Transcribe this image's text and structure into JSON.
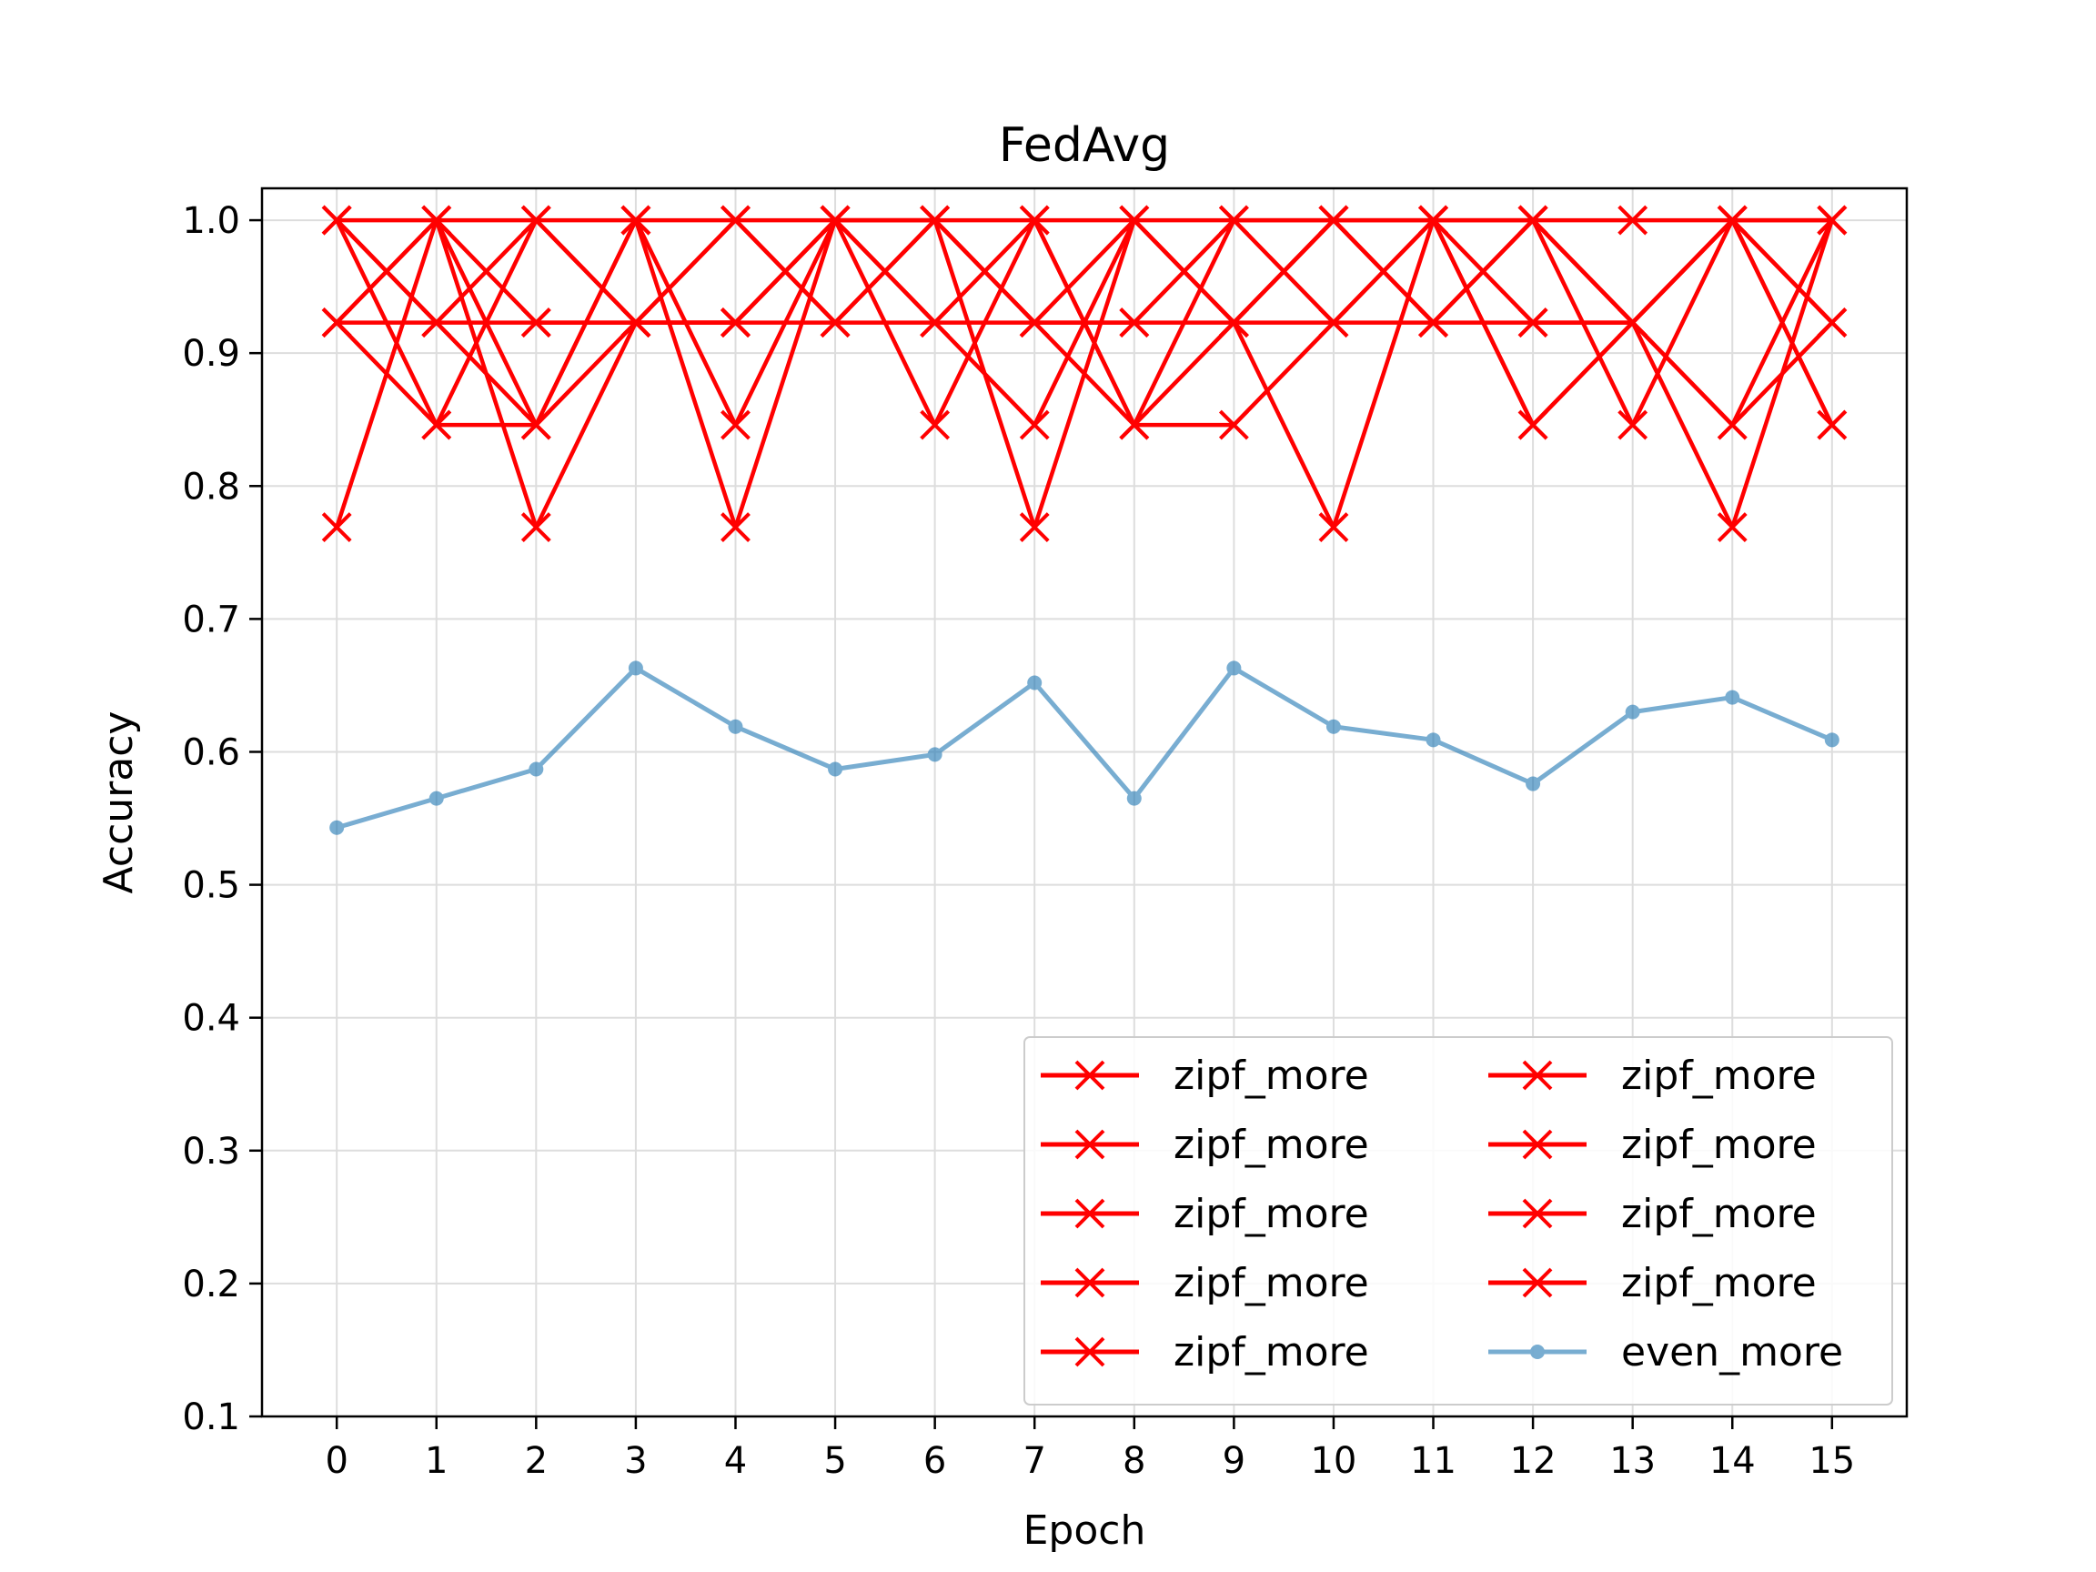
{
  "chart_data": {
    "type": "line",
    "title": "FedAvg",
    "xlabel": "Epoch",
    "ylabel": "Accuracy",
    "x": [
      0,
      1,
      2,
      3,
      4,
      5,
      6,
      7,
      8,
      9,
      10,
      11,
      12,
      13,
      14,
      15
    ],
    "xticks": [
      "0",
      "1",
      "2",
      "3",
      "4",
      "5",
      "6",
      "7",
      "8",
      "9",
      "10",
      "11",
      "12",
      "13",
      "14",
      "15"
    ],
    "yticks": [
      "0.1",
      "0.2",
      "0.3",
      "0.4",
      "0.5",
      "0.6",
      "0.7",
      "0.8",
      "0.9",
      "1.0"
    ],
    "xlim": [
      -0.75,
      15.75
    ],
    "ylim": [
      0.1,
      1.024
    ],
    "grid": true,
    "legend": {
      "placement": "lower-right",
      "columns": 2
    },
    "series": [
      {
        "name": "zipf_more",
        "color": "#ff0000",
        "marker": "x",
        "values": [
          1.0,
          1.0,
          1.0,
          1.0,
          1.0,
          1.0,
          1.0,
          1.0,
          1.0,
          1.0,
          1.0,
          1.0,
          1.0,
          1.0,
          1.0,
          1.0
        ]
      },
      {
        "name": "zipf_more",
        "color": "#ff0000",
        "marker": "x",
        "values": [
          0.923,
          0.923,
          0.923,
          0.923,
          0.923,
          0.923,
          0.923,
          0.923,
          0.923,
          0.923,
          0.923,
          0.923,
          0.923,
          0.923,
          1.0,
          1.0
        ]
      },
      {
        "name": "zipf_more",
        "color": "#ff0000",
        "marker": "x",
        "values": [
          1.0,
          0.923,
          1.0,
          0.923,
          1.0,
          0.923,
          1.0,
          0.923,
          1.0,
          0.923,
          1.0,
          0.923,
          1.0,
          0.923,
          1.0,
          0.923
        ]
      },
      {
        "name": "zipf_more",
        "color": "#ff0000",
        "marker": "x",
        "values": [
          0.923,
          1.0,
          0.846,
          1.0,
          0.846,
          1.0,
          0.846,
          1.0,
          0.846,
          1.0,
          0.923,
          1.0,
          0.846,
          0.923,
          1.0,
          0.923
        ]
      },
      {
        "name": "zipf_more",
        "color": "#ff0000",
        "marker": "x",
        "values": [
          0.769,
          1.0,
          0.769,
          0.923,
          0.923,
          1.0,
          0.923,
          0.846,
          1.0,
          0.923,
          0.769,
          1.0,
          0.923,
          0.923,
          0.846,
          1.0
        ]
      },
      {
        "name": "zipf_more",
        "color": "#ff0000",
        "marker": "x",
        "values": [
          1.0,
          0.846,
          0.846,
          1.0,
          0.769,
          1.0,
          1.0,
          0.769,
          1.0,
          0.923,
          1.0,
          0.923,
          1.0,
          0.846,
          1.0,
          0.846
        ]
      },
      {
        "name": "zipf_more",
        "color": "#ff0000",
        "marker": "x",
        "values": [
          0.923,
          1.0,
          0.923,
          0.923,
          1.0,
          0.923,
          1.0,
          0.923,
          0.846,
          0.846,
          0.923,
          1.0,
          0.846,
          0.923,
          0.769,
          1.0
        ]
      },
      {
        "name": "zipf_more",
        "color": "#ff0000",
        "marker": "x",
        "values": [
          1.0,
          0.923,
          0.846,
          0.923,
          0.923,
          1.0,
          0.923,
          1.0,
          0.846,
          0.923,
          1.0,
          0.923,
          1.0,
          0.923,
          1.0,
          0.846
        ]
      },
      {
        "name": "zipf_more",
        "color": "#ff0000",
        "marker": "x",
        "values": [
          0.923,
          0.846,
          1.0,
          0.923,
          0.923,
          1.0,
          1.0,
          0.923,
          0.923,
          1.0,
          1.0,
          1.0,
          1.0,
          0.923,
          0.846,
          0.923
        ]
      },
      {
        "name": "even_more",
        "color": "#1f77b4",
        "marker": "o",
        "alpha": 0.6,
        "values": [
          0.543,
          0.565,
          0.587,
          0.663,
          0.619,
          0.587,
          0.598,
          0.652,
          0.565,
          0.663,
          0.619,
          0.609,
          0.576,
          0.63,
          0.641,
          0.609
        ]
      }
    ]
  }
}
